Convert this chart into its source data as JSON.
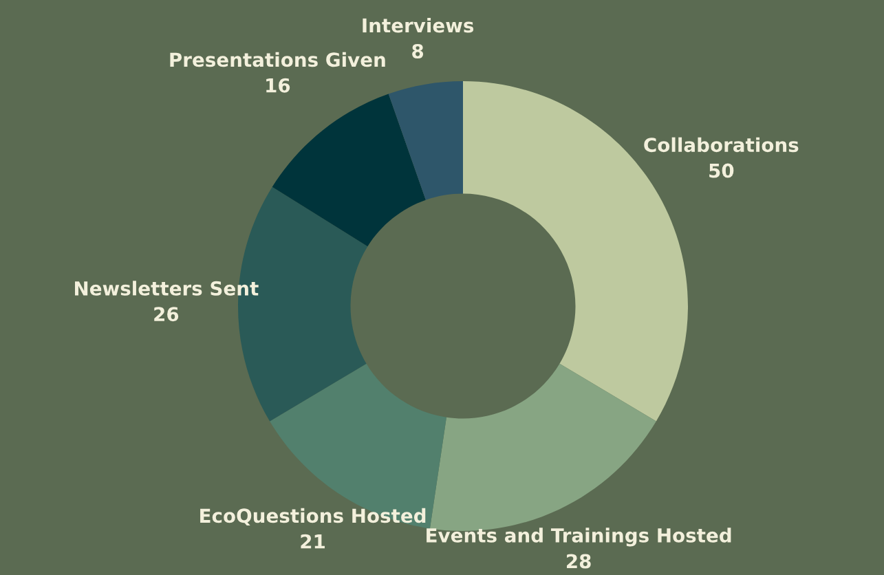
{
  "chart_data": {
    "type": "donut",
    "categories": [
      "Collaborations",
      "Events and Trainings Hosted",
      "EcoQuestions Hosted",
      "Newsletters Sent",
      "Presentations Given",
      "Interviews"
    ],
    "values": [
      50,
      28,
      21,
      26,
      16,
      8
    ],
    "colors": [
      "#bec99f",
      "#87a583",
      "#52806d",
      "#2a5a57",
      "#00343b",
      "#2e566a"
    ],
    "data_labels": true,
    "legend": false
  }
}
